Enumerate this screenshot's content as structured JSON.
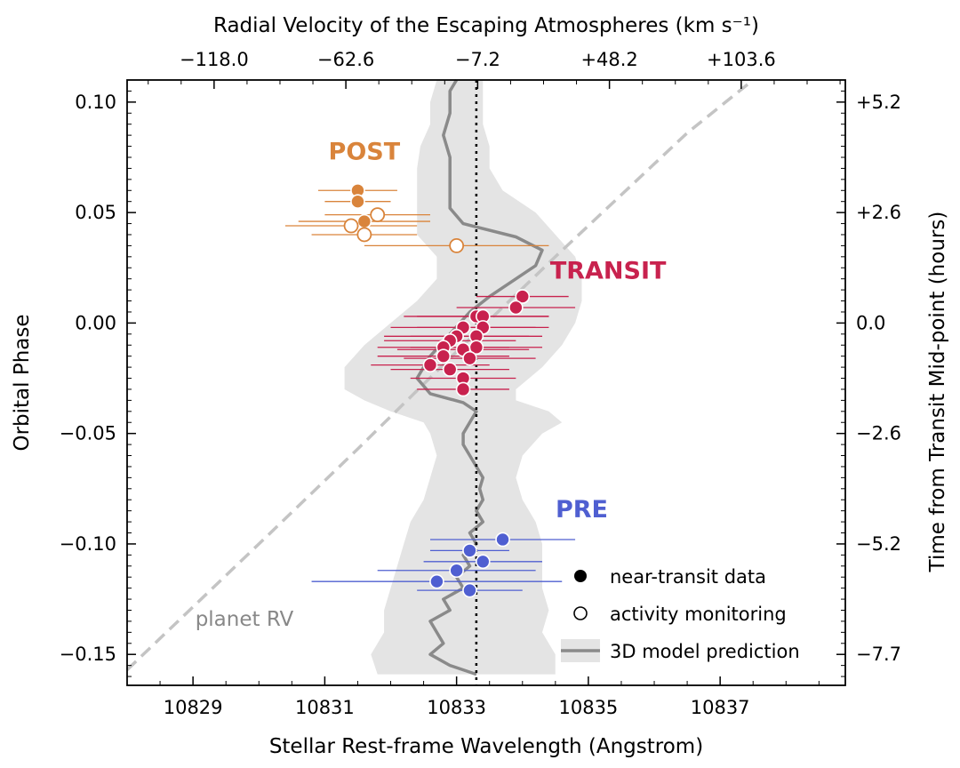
{
  "chart_data": {
    "type": "scatter",
    "xlabel": "Stellar Rest-frame Wavelength (Angstrom)",
    "ylabel": "Orbital Phase",
    "top_xlabel": "Radial Velocity of the Escaping Atmospheres (km s⁻¹)",
    "right_ylabel": "Time from Transit Mid-point (hours)",
    "xlim": [
      10828.0,
      10838.9
    ],
    "ylim": [
      -0.164,
      0.11
    ],
    "x_ticks": [
      10829,
      10831,
      10833,
      10835,
      10837
    ],
    "y_ticks": [
      0.1,
      0.05,
      0.0,
      -0.05,
      -0.1,
      -0.15
    ],
    "y_tick_labels": [
      "0.10",
      "0.05",
      "0.00",
      "−0.05",
      "−0.10",
      "−0.15"
    ],
    "top_ticks": [
      {
        "wavelength": 10829.32,
        "label": "−118.0"
      },
      {
        "wavelength": 10831.32,
        "label": "−62.6"
      },
      {
        "wavelength": 10833.32,
        "label": "−7.2"
      },
      {
        "wavelength": 10835.32,
        "label": "+48.2"
      },
      {
        "wavelength": 10837.32,
        "label": "+103.6"
      }
    ],
    "right_ticks": [
      {
        "phase": 0.1,
        "label": "+5.2"
      },
      {
        "phase": 0.05,
        "label": "+2.6"
      },
      {
        "phase": 0.0,
        "label": "0.0"
      },
      {
        "phase": -0.05,
        "label": "−2.6"
      },
      {
        "phase": -0.1,
        "label": "−5.2"
      },
      {
        "phase": -0.15,
        "label": "−7.7"
      }
    ],
    "rest_wavelength_line": 10833.3,
    "planet_rv": {
      "label": "planet RV",
      "points": [
        [
          10828.0,
          -0.157
        ],
        [
          10830.0,
          -0.1
        ],
        [
          10831.5,
          -0.057
        ],
        [
          10833.0,
          -0.013
        ],
        [
          10834.5,
          0.03
        ],
        [
          10836.5,
          0.086
        ],
        [
          10837.5,
          0.11
        ]
      ]
    },
    "model": {
      "label": "3D model prediction",
      "center": [
        [
          10833.3,
          -0.159
        ],
        [
          10832.9,
          -0.155
        ],
        [
          10832.6,
          -0.15
        ],
        [
          10832.8,
          -0.145
        ],
        [
          10832.7,
          -0.14
        ],
        [
          10832.6,
          -0.135
        ],
        [
          10832.9,
          -0.13
        ],
        [
          10832.8,
          -0.125
        ],
        [
          10833.1,
          -0.12
        ],
        [
          10833.0,
          -0.115
        ],
        [
          10833.2,
          -0.11
        ],
        [
          10833.1,
          -0.105
        ],
        [
          10833.3,
          -0.1
        ],
        [
          10833.2,
          -0.095
        ],
        [
          10833.4,
          -0.09
        ],
        [
          10833.3,
          -0.085
        ],
        [
          10833.4,
          -0.08
        ],
        [
          10833.35,
          -0.075
        ],
        [
          10833.4,
          -0.07
        ],
        [
          10833.3,
          -0.065
        ],
        [
          10833.2,
          -0.06
        ],
        [
          10833.1,
          -0.055
        ],
        [
          10833.1,
          -0.05
        ],
        [
          10833.2,
          -0.045
        ],
        [
          10833.3,
          -0.04
        ],
        [
          10833.1,
          -0.036
        ],
        [
          10832.6,
          -0.032
        ],
        [
          10832.4,
          -0.025
        ],
        [
          10832.6,
          -0.015
        ],
        [
          10832.9,
          -0.005
        ],
        [
          10833.2,
          0.005
        ],
        [
          10833.5,
          0.012
        ],
        [
          10833.9,
          0.02
        ],
        [
          10834.2,
          0.026
        ],
        [
          10834.3,
          0.033
        ],
        [
          10833.9,
          0.039
        ],
        [
          10833.1,
          0.045
        ],
        [
          10832.9,
          0.052
        ],
        [
          10832.9,
          0.06
        ],
        [
          10832.9,
          0.066
        ],
        [
          10832.9,
          0.075
        ],
        [
          10832.8,
          0.085
        ],
        [
          10832.9,
          0.095
        ],
        [
          10832.9,
          0.105
        ],
        [
          10833.0,
          0.11
        ]
      ],
      "low": [
        [
          10831.8,
          -0.159
        ],
        [
          10831.7,
          -0.15
        ],
        [
          10831.9,
          -0.14
        ],
        [
          10831.9,
          -0.13
        ],
        [
          10832.0,
          -0.12
        ],
        [
          10832.1,
          -0.11
        ],
        [
          10832.2,
          -0.1
        ],
        [
          10832.3,
          -0.09
        ],
        [
          10832.5,
          -0.08
        ],
        [
          10832.6,
          -0.07
        ],
        [
          10832.7,
          -0.06
        ],
        [
          10832.6,
          -0.05
        ],
        [
          10832.5,
          -0.045
        ],
        [
          10832.0,
          -0.04
        ],
        [
          10831.6,
          -0.035
        ],
        [
          10831.3,
          -0.03
        ],
        [
          10831.3,
          -0.02
        ],
        [
          10831.6,
          -0.01
        ],
        [
          10832.0,
          0.0
        ],
        [
          10832.4,
          0.01
        ],
        [
          10832.7,
          0.02
        ],
        [
          10832.7,
          0.03
        ],
        [
          10832.4,
          0.04
        ],
        [
          10832.4,
          0.05
        ],
        [
          10832.4,
          0.06
        ],
        [
          10832.4,
          0.07
        ],
        [
          10832.45,
          0.08
        ],
        [
          10832.6,
          0.09
        ],
        [
          10832.6,
          0.1
        ],
        [
          10832.7,
          0.11
        ]
      ],
      "high": [
        [
          10834.5,
          -0.159
        ],
        [
          10834.5,
          -0.15
        ],
        [
          10834.3,
          -0.14
        ],
        [
          10834.4,
          -0.13
        ],
        [
          10834.3,
          -0.12
        ],
        [
          10834.3,
          -0.11
        ],
        [
          10834.3,
          -0.1
        ],
        [
          10834.2,
          -0.09
        ],
        [
          10834.0,
          -0.08
        ],
        [
          10833.9,
          -0.07
        ],
        [
          10834.0,
          -0.06
        ],
        [
          10834.3,
          -0.05
        ],
        [
          10834.6,
          -0.045
        ],
        [
          10834.4,
          -0.04
        ],
        [
          10833.9,
          -0.035
        ],
        [
          10833.9,
          -0.03
        ],
        [
          10834.3,
          -0.02
        ],
        [
          10834.6,
          -0.01
        ],
        [
          10834.8,
          0.0
        ],
        [
          10834.9,
          0.01
        ],
        [
          10834.9,
          0.02
        ],
        [
          10834.8,
          0.03
        ],
        [
          10834.5,
          0.04
        ],
        [
          10834.2,
          0.05
        ],
        [
          10833.7,
          0.06
        ],
        [
          10833.5,
          0.07
        ],
        [
          10833.5,
          0.08
        ],
        [
          10833.4,
          0.09
        ],
        [
          10833.4,
          0.1
        ],
        [
          10833.4,
          0.11
        ]
      ]
    },
    "groups": [
      {
        "name": "POST",
        "label_pos": [
          10831.6,
          0.074
        ],
        "color": "#d9843b",
        "points": [
          {
            "x": 10831.5,
            "y": 0.06,
            "xerr": 0.6,
            "filled": true
          },
          {
            "x": 10831.5,
            "y": 0.055,
            "xerr": 0.5,
            "filled": true
          },
          {
            "x": 10831.8,
            "y": 0.049,
            "xerr": 0.8,
            "filled": false
          },
          {
            "x": 10831.6,
            "y": 0.046,
            "xerr": 1.0,
            "filled": true
          },
          {
            "x": 10831.4,
            "y": 0.044,
            "xerr": 1.0,
            "filled": false
          },
          {
            "x": 10831.6,
            "y": 0.04,
            "xerr": 0.8,
            "filled": false
          },
          {
            "x": 10833.0,
            "y": 0.035,
            "xerr": 1.4,
            "filled": false
          }
        ]
      },
      {
        "name": "TRANSIT",
        "label_pos": [
          10835.3,
          0.02
        ],
        "color": "#c8224e",
        "points": [
          {
            "x": 10834.0,
            "y": 0.012,
            "xerr": 0.7,
            "filled": true
          },
          {
            "x": 10833.9,
            "y": 0.007,
            "xerr": 0.9,
            "filled": true
          },
          {
            "x": 10833.3,
            "y": 0.003,
            "xerr": 1.1,
            "filled": true
          },
          {
            "x": 10833.4,
            "y": 0.003,
            "xerr": 1.0,
            "filled": true
          },
          {
            "x": 10833.1,
            "y": -0.002,
            "xerr": 1.1,
            "filled": true
          },
          {
            "x": 10833.4,
            "y": -0.002,
            "xerr": 1.0,
            "filled": true
          },
          {
            "x": 10833.0,
            "y": -0.006,
            "xerr": 1.1,
            "filled": true
          },
          {
            "x": 10833.3,
            "y": -0.006,
            "xerr": 1.0,
            "filled": true
          },
          {
            "x": 10832.9,
            "y": -0.008,
            "xerr": 1.0,
            "filled": true
          },
          {
            "x": 10833.3,
            "y": -0.011,
            "xerr": 1.0,
            "filled": true
          },
          {
            "x": 10832.8,
            "y": -0.011,
            "xerr": 1.0,
            "filled": true
          },
          {
            "x": 10833.1,
            "y": -0.012,
            "xerr": 1.0,
            "filled": true
          },
          {
            "x": 10832.8,
            "y": -0.015,
            "xerr": 1.0,
            "filled": true
          },
          {
            "x": 10833.2,
            "y": -0.016,
            "xerr": 1.0,
            "filled": true
          },
          {
            "x": 10832.6,
            "y": -0.019,
            "xerr": 0.9,
            "filled": true
          },
          {
            "x": 10832.9,
            "y": -0.021,
            "xerr": 0.9,
            "filled": true
          },
          {
            "x": 10833.1,
            "y": -0.025,
            "xerr": 0.8,
            "filled": true
          },
          {
            "x": 10833.1,
            "y": -0.03,
            "xerr": 0.7,
            "filled": true
          }
        ]
      },
      {
        "name": "PRE",
        "label_pos": [
          10834.9,
          -0.088
        ],
        "color": "#4f5fd1",
        "points": [
          {
            "x": 10833.7,
            "y": -0.098,
            "xerr": 1.1,
            "filled": true
          },
          {
            "x": 10833.2,
            "y": -0.103,
            "xerr": 0.6,
            "filled": true
          },
          {
            "x": 10833.4,
            "y": -0.108,
            "xerr": 0.9,
            "filled": true
          },
          {
            "x": 10833.0,
            "y": -0.112,
            "xerr": 1.2,
            "filled": true
          },
          {
            "x": 10832.7,
            "y": -0.117,
            "xerr": 1.9,
            "filled": true
          },
          {
            "x": 10833.2,
            "y": -0.121,
            "xerr": 0.8,
            "filled": true
          }
        ]
      }
    ],
    "legend": {
      "placement": "lower-right",
      "entries": [
        {
          "label": "near-transit data",
          "kind": "filled-marker"
        },
        {
          "label": "activity monitoring",
          "kind": "open-marker"
        },
        {
          "label": "3D model prediction",
          "kind": "band"
        }
      ]
    }
  }
}
